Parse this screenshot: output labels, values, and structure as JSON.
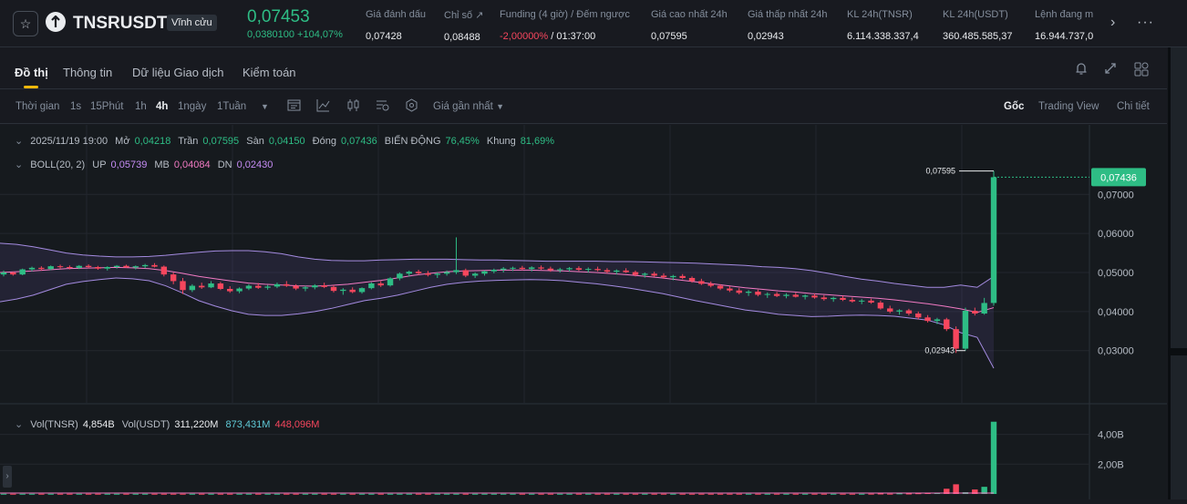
{
  "header": {
    "symbol": "TNSRUSDT",
    "contract_type": "Vĩnh cửu",
    "last_price": "0,07453",
    "change": "0,0380100 +104,07%",
    "stats": [
      {
        "label": "Giá đánh dấu",
        "value": "0,07428"
      },
      {
        "label": "Chỉ số ↗",
        "value": "0,08488"
      },
      {
        "label": "Funding (4 giờ) / Đếm ngược",
        "value_red": "-2,00000%",
        "value_rest": " / 01:37:00"
      },
      {
        "label": "Giá cao nhất 24h",
        "value": "0,07595"
      },
      {
        "label": "Giá thấp nhất 24h",
        "value": "0,02943"
      },
      {
        "label": "KL 24h(TNSR)",
        "value": "6.114.338.337,4"
      },
      {
        "label": "KL 24h(USDT)",
        "value": "360.485.585,37"
      },
      {
        "label": "Lệnh đang m",
        "value": "16.944.737,0"
      }
    ]
  },
  "tabs": [
    "Đồ thị",
    "Thông tin",
    "Dữ liệu Giao dịch",
    "Kiểm toán"
  ],
  "toolbar": {
    "time_label": "Thời gian",
    "intervals": [
      "1s",
      "15Phút",
      "1h",
      "4h",
      "1ngày",
      "1Tuần"
    ],
    "active_interval": "4h",
    "price_source": "Giá gần nhất",
    "views": [
      "Gốc",
      "Trading View",
      "Chi tiết"
    ]
  },
  "ohlc_legend": {
    "date": "2025/11/19 19:00",
    "open_label": "Mở",
    "open": "0,04218",
    "high_label": "Trần",
    "high": "0,07595",
    "low_label": "Sàn",
    "low": "0,04150",
    "close_label": "Đóng",
    "close": "0,07436",
    "change_label": "BIẾN ĐỘNG",
    "change": "76,45%",
    "range_label": "Khung",
    "range": "81,69%"
  },
  "boll_legend": {
    "label": "BOLL(20, 2)",
    "up_label": "UP",
    "up": "0,05739",
    "mb_label": "MB",
    "mb": "0,04084",
    "dn_label": "DN",
    "dn": "0,02430"
  },
  "vol_legend": {
    "label": "Vol(TNSR)",
    "value": "4,854B",
    "usdt_label": "Vol(USDT)",
    "usdt": "311,220M",
    "v2": "873,431M",
    "v3": "448,096M"
  },
  "price_axis": [
    "0,07000",
    "0,06000",
    "0,05000",
    "0,04000",
    "0,03000"
  ],
  "current_price_tag": "0,07436",
  "high_marker": "0,07595",
  "low_marker": "0,02943",
  "vol_axis": [
    "4,00B",
    "2,00B"
  ],
  "colors": {
    "up": "#2ebd85",
    "down": "#f6465d",
    "accent": "#f0b90b",
    "boll_band": "#a48be0",
    "boll_mid": "#f17ac3"
  },
  "icons": [
    "star-icon",
    "tensor-logo-icon",
    "chevron-right-icon",
    "more-icon",
    "bell-icon",
    "expand-icon",
    "layout-icon",
    "indicator-icon",
    "settings-icon"
  ],
  "chart_data": {
    "type": "candlestick",
    "interval": "4h",
    "ylim": [
      0.022,
      0.078
    ],
    "yticks": [
      0.03,
      0.04,
      0.05,
      0.06,
      0.07
    ],
    "candles": [
      [
        0.0495,
        0.0505,
        0.049,
        0.05
      ],
      [
        0.05,
        0.0502,
        0.0492,
        0.0495
      ],
      [
        0.0495,
        0.051,
        0.0493,
        0.0508
      ],
      [
        0.0508,
        0.0515,
        0.0503,
        0.0512
      ],
      [
        0.0512,
        0.0516,
        0.0505,
        0.0509
      ],
      [
        0.0509,
        0.0518,
        0.0506,
        0.0516
      ],
      [
        0.0516,
        0.052,
        0.051,
        0.0514
      ],
      [
        0.0514,
        0.0518,
        0.0508,
        0.0512
      ],
      [
        0.0512,
        0.0519,
        0.0509,
        0.0517
      ],
      [
        0.0517,
        0.0521,
        0.0511,
        0.0514
      ],
      [
        0.0514,
        0.0517,
        0.0507,
        0.051
      ],
      [
        0.051,
        0.0516,
        0.0505,
        0.0514
      ],
      [
        0.0514,
        0.0519,
        0.051,
        0.0517
      ],
      [
        0.0517,
        0.052,
        0.0512,
        0.0513
      ],
      [
        0.0513,
        0.0518,
        0.0508,
        0.0516
      ],
      [
        0.0516,
        0.0522,
        0.0511,
        0.0519
      ],
      [
        0.0519,
        0.0524,
        0.0513,
        0.0515
      ],
      [
        0.0515,
        0.0518,
        0.049,
        0.0495
      ],
      [
        0.0495,
        0.05,
        0.047,
        0.0478
      ],
      [
        0.0478,
        0.0486,
        0.0445,
        0.0455
      ],
      [
        0.0455,
        0.047,
        0.045,
        0.0466
      ],
      [
        0.0466,
        0.0474,
        0.0458,
        0.0462
      ],
      [
        0.0462,
        0.0478,
        0.046,
        0.0472
      ],
      [
        0.0472,
        0.0476,
        0.0455,
        0.0458
      ],
      [
        0.0458,
        0.0465,
        0.0448,
        0.0452
      ],
      [
        0.0452,
        0.0462,
        0.0447,
        0.0459
      ],
      [
        0.0459,
        0.047,
        0.0455,
        0.0466
      ],
      [
        0.0466,
        0.0473,
        0.0458,
        0.0461
      ],
      [
        0.0461,
        0.0468,
        0.0456,
        0.0464
      ],
      [
        0.0464,
        0.0474,
        0.046,
        0.047
      ],
      [
        0.047,
        0.0478,
        0.0463,
        0.0466
      ],
      [
        0.0466,
        0.047,
        0.0455,
        0.0459
      ],
      [
        0.0459,
        0.0466,
        0.0452,
        0.0462
      ],
      [
        0.0462,
        0.047,
        0.0457,
        0.0467
      ],
      [
        0.0467,
        0.0474,
        0.046,
        0.0463
      ],
      [
        0.0463,
        0.0468,
        0.0449,
        0.0453
      ],
      [
        0.0453,
        0.046,
        0.0443,
        0.0456
      ],
      [
        0.0456,
        0.0462,
        0.0447,
        0.045
      ],
      [
        0.045,
        0.0462,
        0.0446,
        0.046
      ],
      [
        0.046,
        0.0475,
        0.0457,
        0.0472
      ],
      [
        0.0472,
        0.0478,
        0.0463,
        0.0467
      ],
      [
        0.0467,
        0.0488,
        0.0464,
        0.0485
      ],
      [
        0.0485,
        0.05,
        0.048,
        0.0497
      ],
      [
        0.0497,
        0.0505,
        0.049,
        0.0502
      ],
      [
        0.0502,
        0.0507,
        0.0494,
        0.0498
      ],
      [
        0.0498,
        0.0504,
        0.049,
        0.0494
      ],
      [
        0.0494,
        0.05,
        0.0486,
        0.0497
      ],
      [
        0.0497,
        0.0505,
        0.0492,
        0.0501
      ],
      [
        0.0501,
        0.059,
        0.0496,
        0.0506
      ],
      [
        0.0506,
        0.051,
        0.0488,
        0.0492
      ],
      [
        0.0492,
        0.05,
        0.0486,
        0.0497
      ],
      [
        0.0497,
        0.0505,
        0.0492,
        0.0503
      ],
      [
        0.0503,
        0.051,
        0.0498,
        0.0507
      ],
      [
        0.0507,
        0.0514,
        0.05,
        0.051
      ],
      [
        0.051,
        0.0515,
        0.0504,
        0.0512
      ],
      [
        0.0512,
        0.0517,
        0.0506,
        0.0509
      ],
      [
        0.0509,
        0.0516,
        0.0503,
        0.0513
      ],
      [
        0.0513,
        0.0518,
        0.0507,
        0.051
      ],
      [
        0.051,
        0.0515,
        0.0502,
        0.0506
      ],
      [
        0.0506,
        0.0512,
        0.05,
        0.0508
      ],
      [
        0.0508,
        0.0514,
        0.0503,
        0.0511
      ],
      [
        0.0511,
        0.0516,
        0.0504,
        0.0507
      ],
      [
        0.0507,
        0.0513,
        0.05,
        0.0509
      ],
      [
        0.0509,
        0.0515,
        0.0503,
        0.0506
      ],
      [
        0.0506,
        0.0511,
        0.0498,
        0.0502
      ],
      [
        0.0502,
        0.0508,
        0.0495,
        0.0505
      ],
      [
        0.0505,
        0.0511,
        0.0499,
        0.0501
      ],
      [
        0.0501,
        0.0505,
        0.049,
        0.0494
      ],
      [
        0.0494,
        0.05,
        0.0487,
        0.0497
      ],
      [
        0.0497,
        0.0502,
        0.0489,
        0.0492
      ],
      [
        0.0492,
        0.0498,
        0.0484,
        0.0488
      ],
      [
        0.0488,
        0.0494,
        0.048,
        0.0491
      ],
      [
        0.0491,
        0.0496,
        0.0483,
        0.0486
      ],
      [
        0.0486,
        0.049,
        0.0474,
        0.0478
      ],
      [
        0.0478,
        0.0484,
        0.0468,
        0.0471
      ],
      [
        0.0471,
        0.0477,
        0.0462,
        0.0466
      ],
      [
        0.0466,
        0.047,
        0.0455,
        0.0459
      ],
      [
        0.0459,
        0.0465,
        0.045,
        0.0454
      ],
      [
        0.0454,
        0.046,
        0.0444,
        0.0448
      ],
      [
        0.0448,
        0.0455,
        0.044,
        0.0451
      ],
      [
        0.0451,
        0.0456,
        0.0439,
        0.0443
      ],
      [
        0.0443,
        0.0449,
        0.0435,
        0.0445
      ],
      [
        0.0445,
        0.045,
        0.0437,
        0.044
      ],
      [
        0.044,
        0.0447,
        0.0434,
        0.0443
      ],
      [
        0.0443,
        0.0448,
        0.0436,
        0.0438
      ],
      [
        0.0438,
        0.0444,
        0.0431,
        0.0441
      ],
      [
        0.0441,
        0.0446,
        0.0433,
        0.0436
      ],
      [
        0.0436,
        0.0442,
        0.0428,
        0.0432
      ],
      [
        0.0432,
        0.0438,
        0.0425,
        0.0435
      ],
      [
        0.0435,
        0.044,
        0.0427,
        0.043
      ],
      [
        0.043,
        0.0436,
        0.0423,
        0.0426
      ],
      [
        0.0426,
        0.0432,
        0.0419,
        0.0428
      ],
      [
        0.0428,
        0.0433,
        0.042,
        0.0423
      ],
      [
        0.0423,
        0.0428,
        0.0405,
        0.0408
      ],
      [
        0.0408,
        0.0415,
        0.0396,
        0.04
      ],
      [
        0.04,
        0.0406,
        0.0392,
        0.0403
      ],
      [
        0.0403,
        0.0407,
        0.039,
        0.0395
      ],
      [
        0.0395,
        0.04,
        0.038,
        0.0385
      ],
      [
        0.0385,
        0.0391,
        0.0372,
        0.0376
      ],
      [
        0.0376,
        0.0384,
        0.0368,
        0.038
      ],
      [
        0.038,
        0.0384,
        0.035,
        0.0355
      ],
      [
        0.0355,
        0.0362,
        0.0294,
        0.0305
      ],
      [
        0.0305,
        0.041,
        0.03,
        0.0402
      ],
      [
        0.0402,
        0.041,
        0.039,
        0.0395
      ],
      [
        0.0395,
        0.0435,
        0.0392,
        0.0422
      ],
      [
        0.0422,
        0.076,
        0.0415,
        0.0744
      ]
    ],
    "boll": {
      "upper": [
        0.0575,
        0.0572,
        0.0566,
        0.0558,
        0.055,
        0.0545,
        0.0542,
        0.054,
        0.054,
        0.0541,
        0.0544,
        0.0548,
        0.0552,
        0.0555,
        0.0556,
        0.0556,
        0.0553,
        0.0548,
        0.054,
        0.0534,
        0.0531,
        0.053,
        0.053,
        0.0532,
        0.0533,
        0.0534,
        0.0534,
        0.0534,
        0.0533,
        0.0532,
        0.0532,
        0.0531,
        0.053,
        0.0529,
        0.0529,
        0.0529,
        0.0529,
        0.0528,
        0.0528,
        0.0527,
        0.0526,
        0.0525,
        0.0524,
        0.0522,
        0.052,
        0.0518,
        0.0515,
        0.0513,
        0.051,
        0.0505,
        0.0498,
        0.049,
        0.0483,
        0.0478,
        0.0472,
        0.0467,
        0.0462,
        0.0462,
        0.0468,
        0.0462,
        0.049
      ],
      "mid": [
        0.05,
        0.0502,
        0.0504,
        0.0507,
        0.051,
        0.0511,
        0.0512,
        0.0513,
        0.0512,
        0.051,
        0.0505,
        0.0498,
        0.049,
        0.0484,
        0.0478,
        0.0473,
        0.047,
        0.0468,
        0.0466,
        0.0465,
        0.0467,
        0.047,
        0.0475,
        0.048,
        0.0486,
        0.0493,
        0.0498,
        0.0502,
        0.0504,
        0.0505,
        0.0506,
        0.0506,
        0.0506,
        0.0505,
        0.0504,
        0.0502,
        0.05,
        0.0497,
        0.0494,
        0.049,
        0.0486,
        0.0481,
        0.0476,
        0.0471,
        0.0466,
        0.0461,
        0.0457,
        0.0453,
        0.045,
        0.0446,
        0.0443,
        0.044,
        0.0437,
        0.0434,
        0.043,
        0.0425,
        0.042,
        0.0414,
        0.0407,
        0.0398,
        0.041
      ],
      "lower": [
        0.0425,
        0.0432,
        0.0442,
        0.0456,
        0.047,
        0.0477,
        0.0482,
        0.0486,
        0.0484,
        0.0479,
        0.0466,
        0.0448,
        0.0428,
        0.0414,
        0.0402,
        0.0393,
        0.039,
        0.039,
        0.0394,
        0.04,
        0.0408,
        0.0418,
        0.0428,
        0.0434,
        0.0442,
        0.0452,
        0.0462,
        0.047,
        0.0475,
        0.0478,
        0.048,
        0.0481,
        0.0482,
        0.0481,
        0.0479,
        0.0475,
        0.0471,
        0.0466,
        0.046,
        0.0453,
        0.0446,
        0.0437,
        0.0428,
        0.042,
        0.0412,
        0.0404,
        0.0399,
        0.0393,
        0.039,
        0.0387,
        0.0388,
        0.039,
        0.0391,
        0.039,
        0.0388,
        0.0383,
        0.0378,
        0.0366,
        0.0346,
        0.0334,
        0.0255
      ]
    },
    "volume_ylim": [
      0,
      5.2
    ],
    "volume_unit": "B",
    "volumes_last": [
      0.02,
      0.03,
      0.02,
      0.04,
      0.03,
      0.05,
      0.06,
      0.08,
      0.35,
      0.65,
      0.12,
      0.3,
      0.48,
      4.85
    ]
  }
}
